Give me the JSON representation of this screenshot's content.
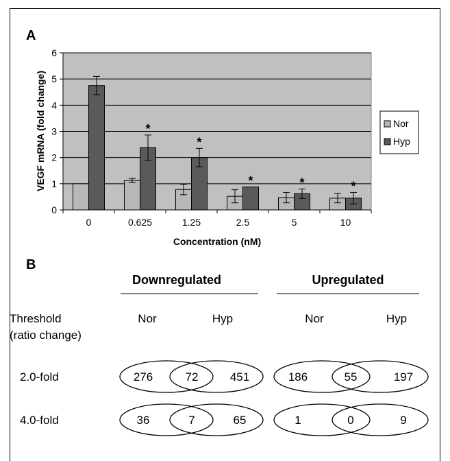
{
  "figure": {
    "panel_a_label": "A",
    "panel_b_label": "B"
  },
  "chart_data": {
    "type": "bar",
    "title": "",
    "xlabel": "Concentration (nM)",
    "ylabel": "VEGF mRNA (fold change)",
    "ylim": [
      0,
      6
    ],
    "yticks": [
      0,
      1,
      2,
      3,
      4,
      5,
      6
    ],
    "grid": true,
    "legend_position": "right",
    "categories": [
      "0",
      "0.625",
      "1.25",
      "2.5",
      "5",
      "10"
    ],
    "series": [
      {
        "name": "Nor",
        "color": "#b8b8b8",
        "values": [
          1.0,
          1.12,
          0.78,
          0.52,
          0.47,
          0.45
        ],
        "errors": [
          0.0,
          0.08,
          0.2,
          0.25,
          0.2,
          0.18
        ],
        "significant": [
          false,
          false,
          false,
          false,
          false,
          false
        ]
      },
      {
        "name": "Hyp",
        "color": "#5a5a5a",
        "values": [
          4.75,
          2.38,
          2.0,
          0.88,
          0.62,
          0.45
        ],
        "errors": [
          0.35,
          0.48,
          0.35,
          0.0,
          0.18,
          0.22
        ],
        "significant": [
          false,
          true,
          true,
          true,
          true,
          true
        ]
      }
    ],
    "significance_marker": "*",
    "plot_background": "#c0c0c0"
  },
  "panel_b": {
    "downregulated_header": "Downregulated",
    "upregulated_header": "Upregulated",
    "threshold_label_line1": "Threshold",
    "threshold_label_line2": "(ratio change)",
    "col_nor": "Nor",
    "col_hyp": "Hyp",
    "rows": [
      {
        "label": "2.0-fold",
        "down": {
          "nor": "276",
          "both": "72",
          "hyp": "451"
        },
        "up": {
          "nor": "186",
          "both": "55",
          "hyp": "197"
        }
      },
      {
        "label": "4.0-fold",
        "down": {
          "nor": "36",
          "both": "7",
          "hyp": "65"
        },
        "up": {
          "nor": "1",
          "both": "0",
          "hyp": "9"
        }
      }
    ]
  }
}
